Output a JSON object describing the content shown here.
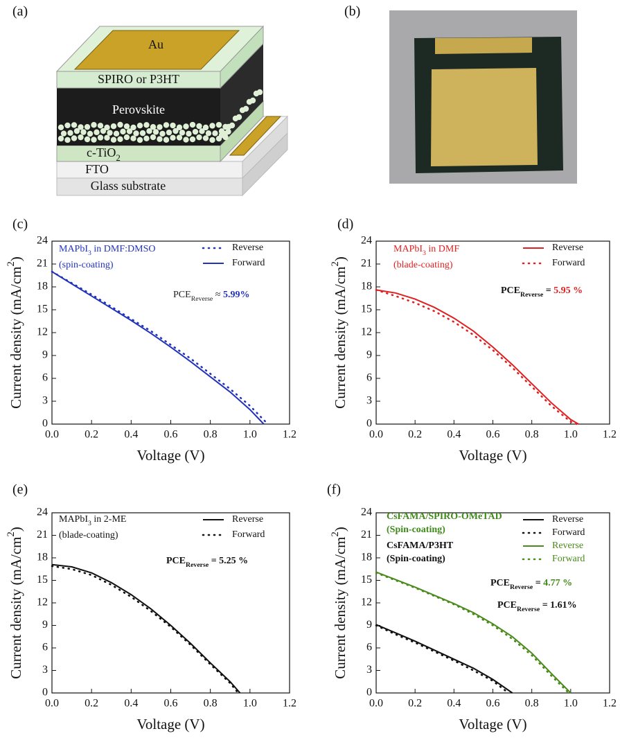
{
  "figure": {
    "panel_labels": [
      "(a)",
      "(b)",
      "(c)",
      "(d)",
      "(e)",
      "(f)"
    ],
    "device_layers": {
      "top_contact": "Au",
      "htl": "SPIRO or P3HT",
      "absorber": "Perovskite",
      "etl": {
        "text": "c-TiO",
        "sub": "2"
      },
      "tco": "FTO",
      "substrate": "Glass substrate"
    }
  },
  "chart_data": [
    {
      "type": "line",
      "xlabel": "Voltage (V)",
      "ylabel": {
        "text": "Current density (mA/cm",
        "sup": "2",
        "after": ")"
      },
      "xlim": [
        0,
        1.2
      ],
      "ylim": [
        0,
        24
      ],
      "xticks": [
        {
          "value": 0,
          "label": "0.0"
        },
        {
          "value": 0.2,
          "label": "0.2"
        },
        {
          "value": 0.4,
          "label": "0.4"
        },
        {
          "value": 0.6,
          "label": "0.6"
        },
        {
          "value": 0.8,
          "label": "0.8"
        },
        {
          "value": 1,
          "label": "1.0"
        },
        {
          "value": 1.2,
          "label": "1.2"
        }
      ],
      "yticks": [
        0,
        3,
        6,
        9,
        12,
        15,
        18,
        21,
        24
      ],
      "annotations": [
        {
          "text": "MAPbI",
          "sub": "3",
          "after": " in DMF:DMSO",
          "color": "#2233bb"
        },
        {
          "text": "(spin-coating)",
          "color": "#2233bb"
        },
        {
          "text": "PCE",
          "sub": "Reverse",
          "after": " ≈ ",
          "highlight": "5.99%",
          "color": "#222222",
          "highlight_color": "#2233bb"
        }
      ],
      "series": [
        {
          "name": "Reverse",
          "color": "#2233bb",
          "style": "dotted",
          "x": [
            0,
            0.1,
            0.2,
            0.3,
            0.4,
            0.5,
            0.6,
            0.7,
            0.8,
            0.9,
            1.0,
            1.09
          ],
          "values": [
            20.0,
            18.5,
            17.0,
            15.4,
            13.8,
            12.2,
            10.4,
            8.6,
            6.6,
            4.6,
            2.4,
            0
          ]
        },
        {
          "name": "Forward",
          "color": "#2233bb",
          "style": "solid",
          "x": [
            0,
            0.1,
            0.2,
            0.3,
            0.4,
            0.5,
            0.6,
            0.7,
            0.8,
            0.9,
            1.0,
            1.07
          ],
          "values": [
            20.0,
            18.4,
            16.8,
            15.2,
            13.6,
            11.9,
            10.1,
            8.2,
            6.2,
            4.2,
            1.9,
            0
          ]
        }
      ]
    },
    {
      "type": "line",
      "xlabel": "Voltage (V)",
      "ylabel": {
        "text": "Current density (mA/cm",
        "sup": "2",
        "after": ")"
      },
      "xlim": [
        0,
        1.2
      ],
      "ylim": [
        0,
        24
      ],
      "xticks": [
        {
          "value": 0,
          "label": "0.0"
        },
        {
          "value": 0.2,
          "label": "0.2"
        },
        {
          "value": 0.4,
          "label": "0.4"
        },
        {
          "value": 0.6,
          "label": "0.6"
        },
        {
          "value": 0.8,
          "label": "0.8"
        },
        {
          "value": 1,
          "label": "1.0"
        },
        {
          "value": 1.2,
          "label": "1.2"
        }
      ],
      "yticks": [
        0,
        3,
        6,
        9,
        12,
        15,
        18,
        21,
        24
      ],
      "annotations": [
        {
          "text": "MAPbI",
          "sub": "3",
          "after": " in DMF",
          "color": "#e02020"
        },
        {
          "text": "(blade-coating)",
          "color": "#e02020"
        },
        {
          "text": "PCE",
          "sub": "Reverse",
          "after": " = ",
          "highlight": "5.95 %",
          "color": "#111111",
          "highlight_color": "#e02020",
          "bold": true
        }
      ],
      "series": [
        {
          "name": "Reverse",
          "color": "#e02020",
          "style": "solid",
          "x": [
            0,
            0.1,
            0.2,
            0.3,
            0.4,
            0.5,
            0.6,
            0.7,
            0.8,
            0.9,
            1.0,
            1.04
          ],
          "values": [
            17.6,
            17.2,
            16.4,
            15.3,
            13.9,
            12.2,
            10.1,
            7.8,
            5.3,
            2.8,
            0.6,
            0
          ]
        },
        {
          "name": "Forward",
          "color": "#e02020",
          "style": "dotted",
          "x": [
            0,
            0.1,
            0.2,
            0.3,
            0.4,
            0.5,
            0.6,
            0.7,
            0.8,
            0.9,
            1.0,
            1.03
          ],
          "values": [
            17.6,
            16.8,
            15.9,
            14.8,
            13.4,
            11.7,
            9.7,
            7.4,
            4.9,
            2.4,
            0.3,
            0
          ]
        }
      ]
    },
    {
      "type": "line",
      "xlabel": "Voltage (V)",
      "ylabel": {
        "text": "Current density (mA/cm",
        "sup": "2",
        "after": ")"
      },
      "xlim": [
        0,
        1.2
      ],
      "ylim": [
        0,
        24
      ],
      "xticks": [
        {
          "value": 0,
          "label": "0.0"
        },
        {
          "value": 0.2,
          "label": "0.2"
        },
        {
          "value": 0.4,
          "label": "0.4"
        },
        {
          "value": 0.6,
          "label": "0.6"
        },
        {
          "value": 0.8,
          "label": "0.8"
        },
        {
          "value": 1,
          "label": "1.0"
        },
        {
          "value": 1.2,
          "label": "1.2"
        }
      ],
      "yticks": [
        0,
        3,
        6,
        9,
        12,
        15,
        18,
        21,
        24
      ],
      "annotations": [
        {
          "text": "MAPbI",
          "sub": "3",
          "after": " in 2-ME",
          "color": "#111111"
        },
        {
          "text": "(blade-coating)",
          "color": "#111111"
        },
        {
          "text": "PCE",
          "sub": "Reverse",
          "after": " = ",
          "highlight": "5.25 %",
          "color": "#111111",
          "highlight_color": "#111111",
          "bold": true
        }
      ],
      "series": [
        {
          "name": "Reverse",
          "color": "#111111",
          "style": "solid",
          "x": [
            0,
            0.1,
            0.2,
            0.3,
            0.4,
            0.5,
            0.6,
            0.7,
            0.8,
            0.9,
            0.95
          ],
          "values": [
            17.1,
            16.8,
            16.0,
            14.7,
            13.1,
            11.2,
            9.0,
            6.6,
            4.0,
            1.5,
            0
          ]
        },
        {
          "name": "Forward",
          "color": "#111111",
          "style": "dotted",
          "x": [
            0,
            0.1,
            0.2,
            0.3,
            0.4,
            0.5,
            0.6,
            0.7,
            0.8,
            0.9,
            0.94
          ],
          "values": [
            16.9,
            16.5,
            15.7,
            14.4,
            12.8,
            10.9,
            8.8,
            6.4,
            3.8,
            1.3,
            0
          ]
        }
      ]
    },
    {
      "type": "line",
      "xlabel": "Voltage (V)",
      "ylabel": {
        "text": "Current density (mA/cm",
        "sup": "2",
        "after": ")"
      },
      "xlim": [
        0,
        1.2
      ],
      "ylim": [
        0,
        24
      ],
      "xticks": [
        {
          "value": 0,
          "label": "0.0"
        },
        {
          "value": 0.2,
          "label": "0.2"
        },
        {
          "value": 0.4,
          "label": "0.4"
        },
        {
          "value": 0.6,
          "label": "0.6"
        },
        {
          "value": 0.8,
          "label": "0.8"
        },
        {
          "value": 1,
          "label": "1.0"
        },
        {
          "value": 1.2,
          "label": "1.2"
        }
      ],
      "yticks": [
        0,
        3,
        6,
        9,
        12,
        15,
        18,
        21,
        24
      ],
      "annotations": [
        {
          "text": "CsFAMA/SPIRO-OMeTAD",
          "color": "#3f8a1a",
          "bold": true
        },
        {
          "text": "(Spin-coating)",
          "color": "#3f8a1a",
          "bold": true
        },
        {
          "text": "CsFAMA/P3HT",
          "color": "#111111",
          "bold": true
        },
        {
          "text": "(Spin-coating)",
          "color": "#111111",
          "bold": true
        },
        {
          "text": "PCE",
          "sub": "Reverse",
          "after": " = ",
          "highlight": "4.77 %",
          "color": "#111111",
          "highlight_color": "#3f8a1a",
          "bold": true
        },
        {
          "text": "PCE",
          "sub": "Reverse",
          "after": " = ",
          "highlight": "1.61%",
          "color": "#111111",
          "highlight_color": "#111111",
          "bold": true
        }
      ],
      "series": [
        {
          "name": "Reverse",
          "color": "#111111",
          "style": "solid",
          "x": [
            0,
            0.1,
            0.2,
            0.3,
            0.4,
            0.5,
            0.6,
            0.7
          ],
          "values": [
            9.1,
            8.0,
            6.9,
            5.7,
            4.5,
            3.3,
            1.8,
            0
          ]
        },
        {
          "name": "Forward",
          "color": "#111111",
          "style": "dotted",
          "x": [
            0,
            0.1,
            0.2,
            0.3,
            0.4,
            0.5,
            0.6,
            0.68
          ],
          "values": [
            9.0,
            7.8,
            6.7,
            5.5,
            4.3,
            3.0,
            1.6,
            0
          ]
        },
        {
          "name": "Reverse",
          "color": "#4a8a1a",
          "style": "solid",
          "x": [
            0,
            0.1,
            0.2,
            0.3,
            0.4,
            0.5,
            0.6,
            0.7,
            0.8,
            0.9,
            1.0
          ],
          "values": [
            16.1,
            15.1,
            14.1,
            13.0,
            11.9,
            10.7,
            9.2,
            7.5,
            5.3,
            2.6,
            0
          ]
        },
        {
          "name": "Forward",
          "color": "#4a8a1a",
          "style": "dotted",
          "x": [
            0,
            0.1,
            0.2,
            0.3,
            0.4,
            0.5,
            0.6,
            0.7,
            0.8,
            0.9,
            0.99
          ],
          "values": [
            16.0,
            15.0,
            14.0,
            12.9,
            11.8,
            10.5,
            9.0,
            7.2,
            5.0,
            2.3,
            0
          ]
        }
      ]
    }
  ]
}
